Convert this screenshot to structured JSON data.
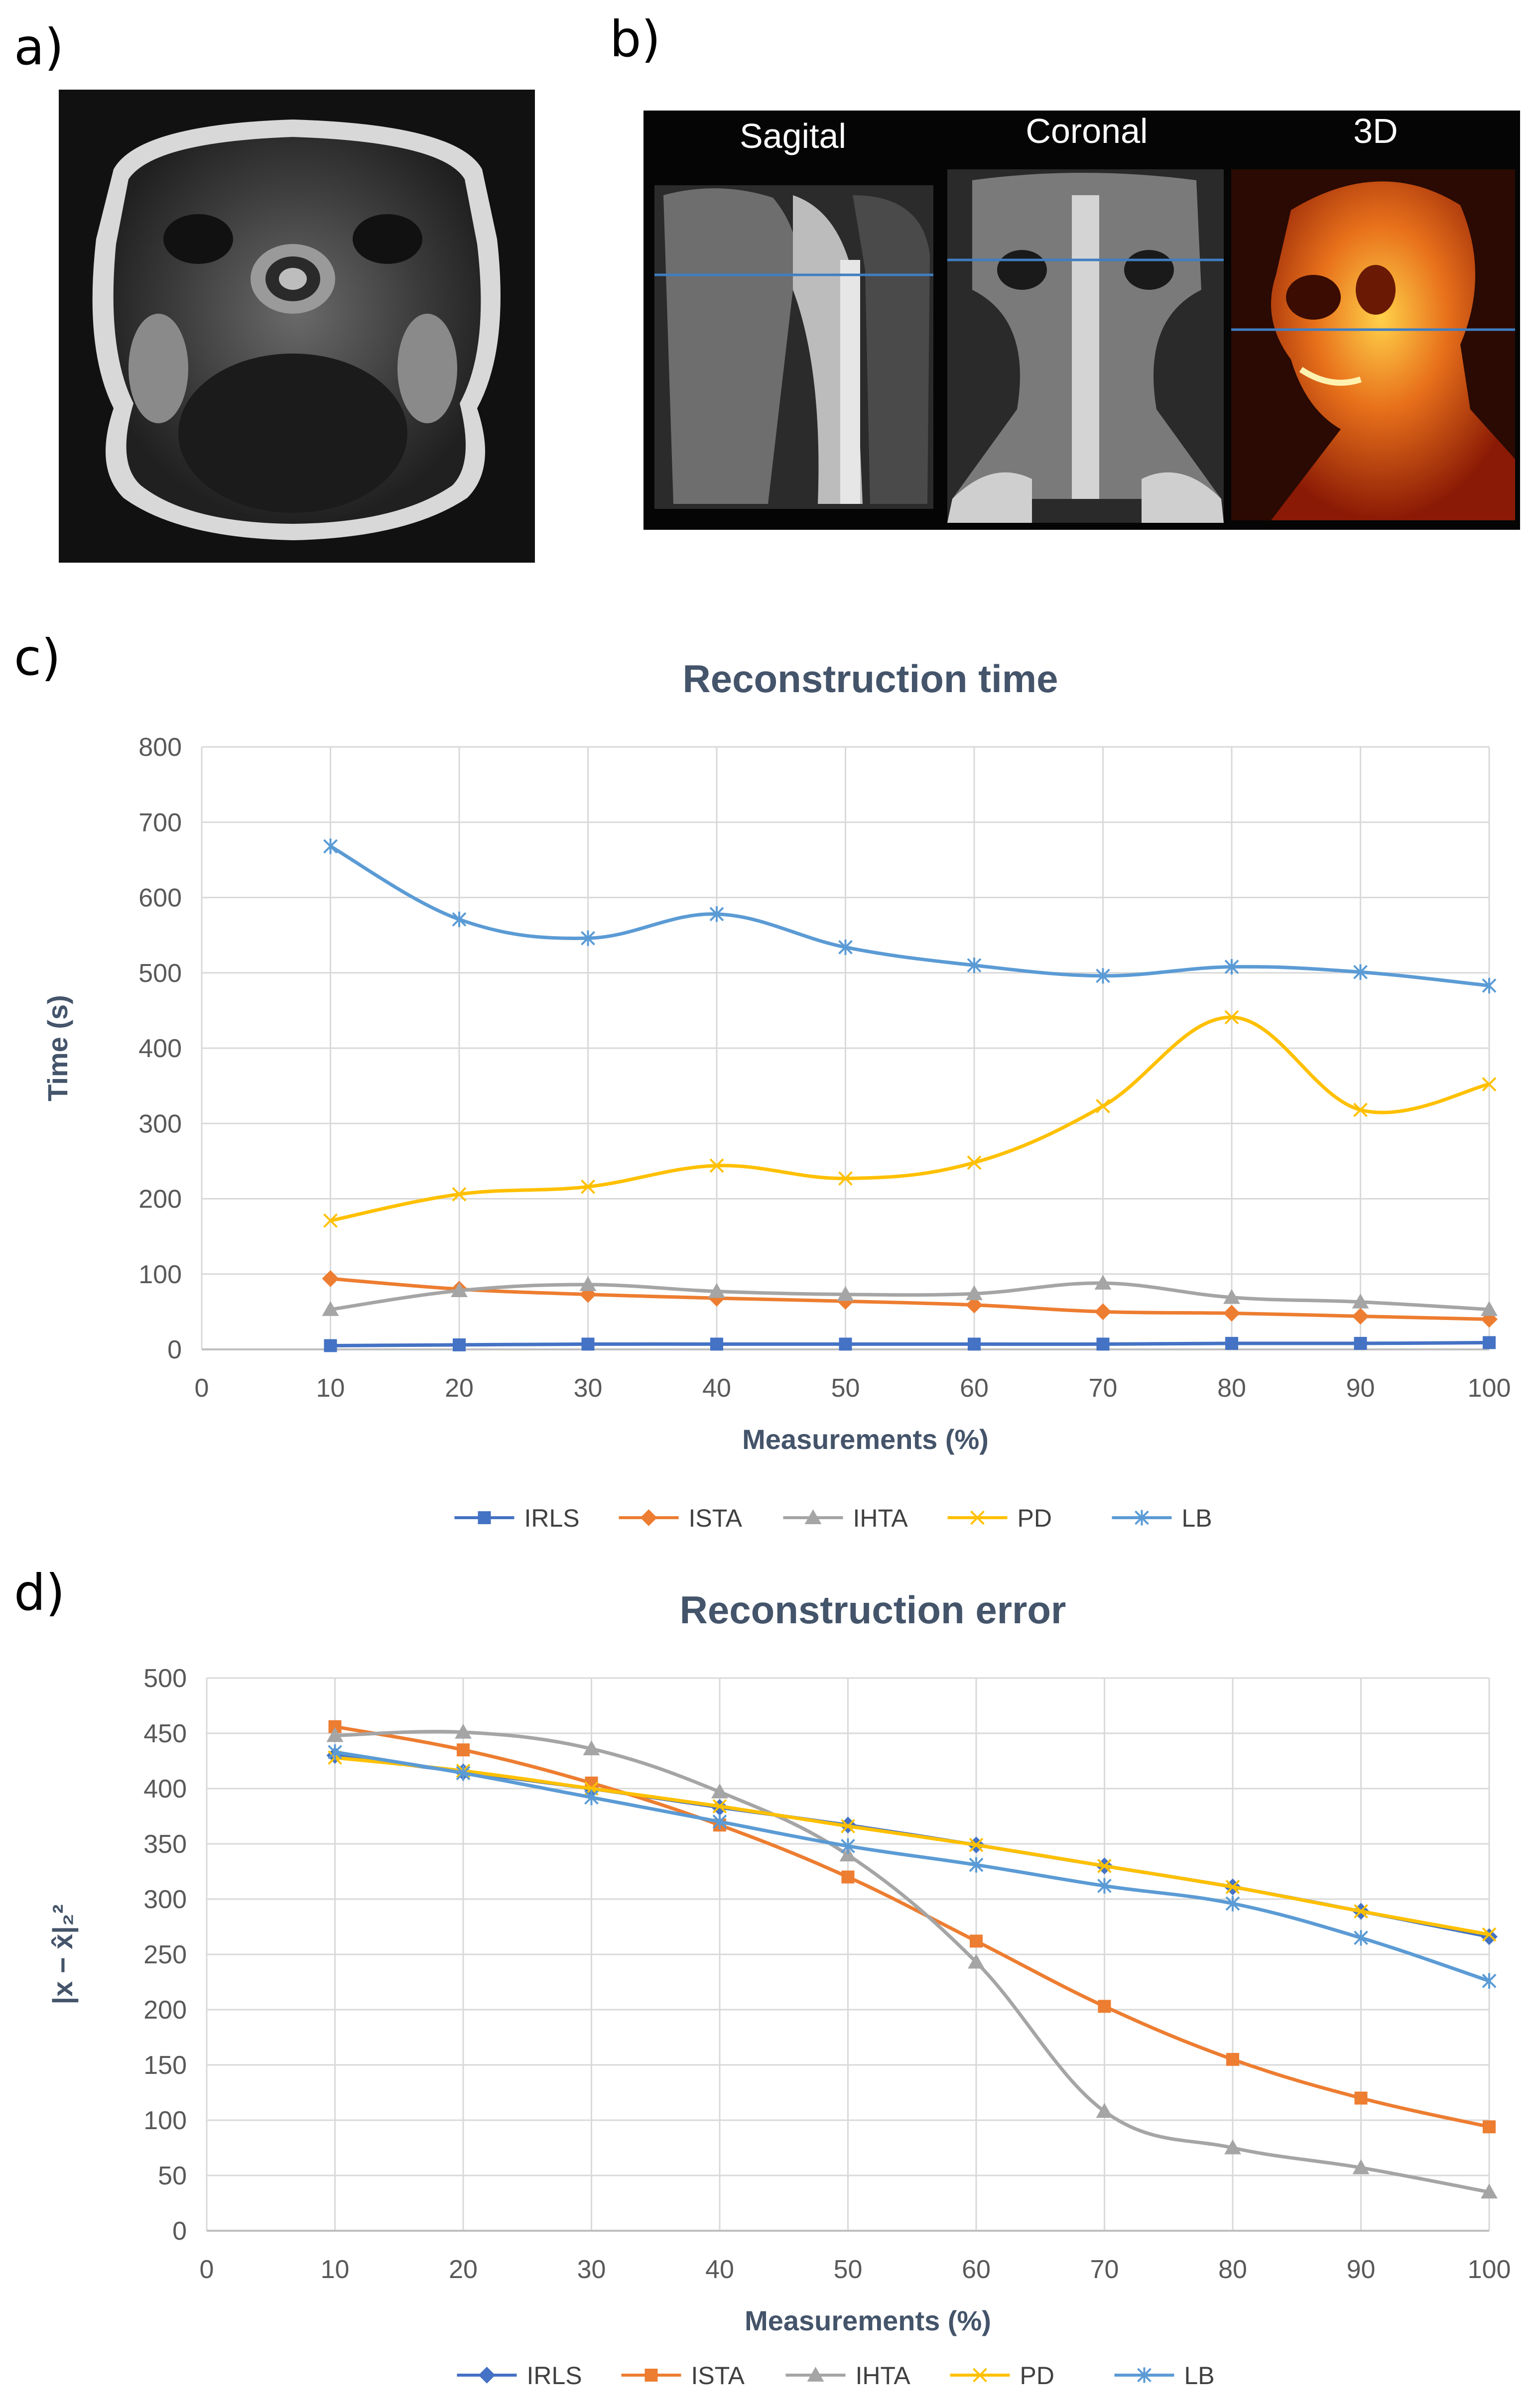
{
  "panels": {
    "a": "a)",
    "b": "b)",
    "c": "c)",
    "d": "d)"
  },
  "mri_views": {
    "sagital": "Sagital",
    "coronal": "Coronal",
    "three_d": "3D"
  },
  "colors": {
    "IRLS": "#4472C4",
    "ISTA": "#ED7D31",
    "IHTA": "#A5A5A5",
    "PD": "#FFC000",
    "LB": "#5B9BD5"
  },
  "chart_data": [
    {
      "type": "line",
      "title": "Reconstruction time",
      "xlabel": "Measurements (%)",
      "ylabel": "Time (s)",
      "xlim": [
        0,
        100
      ],
      "ylim": [
        0,
        800
      ],
      "xticks": [
        0,
        10,
        20,
        30,
        40,
        50,
        60,
        70,
        80,
        90,
        100
      ],
      "yticks": [
        0,
        100,
        200,
        300,
        400,
        500,
        600,
        700,
        800
      ],
      "grid": true,
      "legend": "bottom",
      "x": [
        10,
        20,
        30,
        40,
        50,
        60,
        70,
        80,
        90,
        100
      ],
      "series": [
        {
          "name": "IRLS",
          "marker": "square",
          "values": [
            5,
            6,
            7,
            7,
            7,
            7,
            7,
            8,
            8,
            9
          ]
        },
        {
          "name": "ISTA",
          "marker": "diamond",
          "values": [
            94,
            80,
            73,
            68,
            64,
            59,
            50,
            48,
            44,
            40
          ]
        },
        {
          "name": "IHTA",
          "marker": "triangle",
          "values": [
            53,
            78,
            86,
            77,
            73,
            74,
            88,
            69,
            63,
            53
          ]
        },
        {
          "name": "PD",
          "marker": "x",
          "values": [
            171,
            206,
            216,
            244,
            227,
            248,
            323,
            441,
            318,
            352
          ]
        },
        {
          "name": "LB",
          "marker": "star",
          "values": [
            668,
            571,
            546,
            578,
            534,
            510,
            496,
            508,
            501,
            483
          ]
        }
      ]
    },
    {
      "type": "line",
      "title": "Reconstruction error",
      "xlabel": "Measurements (%)",
      "ylabel": "|x − x̂|₂²",
      "xlim": [
        0,
        100
      ],
      "ylim": [
        0,
        500
      ],
      "xticks": [
        0,
        10,
        20,
        30,
        40,
        50,
        60,
        70,
        80,
        90,
        100
      ],
      "yticks": [
        0,
        50,
        100,
        150,
        200,
        250,
        300,
        350,
        400,
        450,
        500
      ],
      "grid": true,
      "legend": "bottom",
      "x": [
        10,
        20,
        30,
        40,
        50,
        60,
        70,
        80,
        90,
        100
      ],
      "series": [
        {
          "name": "IRLS",
          "marker": "diamond",
          "values": [
            430,
            415,
            400,
            383,
            367,
            349,
            330,
            311,
            289,
            266
          ]
        },
        {
          "name": "ISTA",
          "marker": "square",
          "values": [
            456,
            435,
            405,
            367,
            320,
            262,
            203,
            155,
            120,
            94
          ]
        },
        {
          "name": "IHTA",
          "marker": "triangle",
          "values": [
            448,
            451,
            436,
            397,
            340,
            243,
            108,
            75,
            57,
            35
          ]
        },
        {
          "name": "PD",
          "marker": "x",
          "values": [
            428,
            416,
            400,
            384,
            366,
            349,
            330,
            311,
            289,
            268
          ]
        },
        {
          "name": "LB",
          "marker": "star",
          "values": [
            433,
            414,
            392,
            370,
            348,
            331,
            312,
            296,
            265,
            226
          ]
        }
      ]
    }
  ]
}
